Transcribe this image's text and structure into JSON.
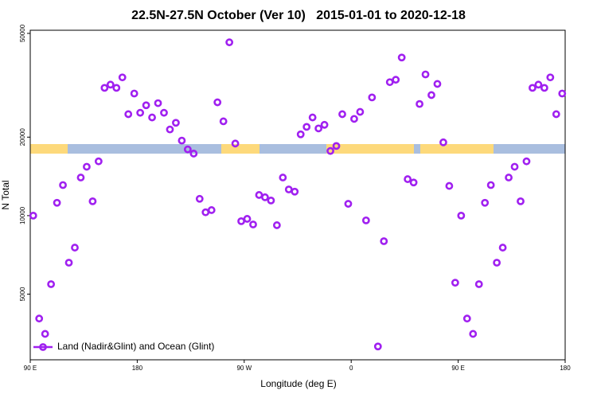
{
  "chart_data": {
    "type": "scatter",
    "title": "22.5N-27.5N October (Ver 10)   2015-01-01 to 2020-12-18",
    "xlabel": "Longitude (deg E)",
    "ylabel": "N Total",
    "xlim": [
      90,
      540
    ],
    "ylim": [
      2800,
      51400
    ],
    "log_y": true,
    "xticks": [
      {
        "value": 90,
        "label": "90 E"
      },
      180,
      {
        "value": 270,
        "label": "90 W"
      },
      {
        "value": 360,
        "label": "0"
      },
      {
        "value": 450,
        "label": "90 E"
      },
      {
        "value": 540,
        "label": "180"
      }
    ],
    "yticks": [
      5000,
      10000,
      20000,
      50000
    ],
    "legend_loc": "lower left",
    "series": [
      {
        "name": "Land (Nadir&Glint) and Ocean (Glint)",
        "color": "#a020f0",
        "x": [
          92.5,
          97.5,
          102.5,
          107.5,
          112.5,
          117.5,
          122.5,
          127.5,
          132.5,
          137.5,
          142.5,
          147.5,
          152.5,
          157.5,
          162.5,
          167.5,
          172.5,
          177.5,
          182.5,
          187.5,
          192.5,
          197.5,
          202.5,
          207.5,
          212.5,
          217.5,
          222.5,
          227.5,
          232.5,
          237.5,
          242.5,
          247.5,
          252.5,
          257.5,
          262.5,
          267.5,
          272.5,
          277.5,
          282.5,
          287.5,
          292.5,
          297.5,
          302.5,
          307.5,
          312.5,
          317.5,
          322.5,
          327.5,
          332.5,
          337.5,
          342.5,
          347.5,
          352.5,
          357.5,
          362.5,
          367.5,
          372.5,
          377.5,
          382.5,
          387.5,
          392.5,
          397.5,
          402.5,
          407.5,
          412.5,
          417.5,
          422.5,
          427.5,
          432.5,
          437.5,
          442.5,
          447.5,
          452.5,
          457.5,
          462.5,
          467.5,
          472.5,
          477.5,
          482.5,
          487.5,
          492.5,
          497.5,
          502.5,
          507.5,
          512.5,
          517.5,
          522.5,
          527.5,
          532.5,
          537.5
        ],
        "values": [
          10000,
          4030,
          3520,
          5460,
          11200,
          13100,
          6600,
          7540,
          14000,
          15400,
          11350,
          16150,
          30900,
          31800,
          30900,
          33900,
          24500,
          29400,
          24800,
          26500,
          23800,
          27000,
          24800,
          21400,
          22700,
          19400,
          17950,
          17300,
          11600,
          10300,
          10500,
          27200,
          23000,
          46200,
          18900,
          9520,
          9720,
          9250,
          12000,
          11760,
          11430,
          9190,
          14000,
          12600,
          12360,
          20500,
          21900,
          23800,
          21600,
          22300,
          17700,
          18500,
          24500,
          11100,
          23500,
          25000,
          9590,
          28400,
          3150,
          7980,
          32500,
          33200,
          40400,
          13800,
          13400,
          26800,
          34800,
          29000,
          32000,
          19100,
          13000,
          5530,
          10000,
          4030,
          3520,
          5460,
          11200,
          13100,
          6600,
          7540,
          14000,
          15400,
          11350,
          16150,
          30900,
          31800,
          30900,
          33900,
          24500,
          29400
        ]
      }
    ]
  }
}
